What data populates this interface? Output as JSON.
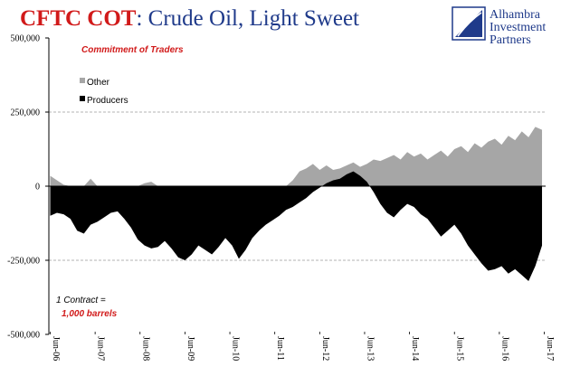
{
  "title": {
    "part1": "CFTC COT",
    "part2": ": Crude Oil, Light Sweet"
  },
  "subtitle": "Commitment of Traders",
  "logo": {
    "line1": "Alhambra",
    "line2": "Investment",
    "line3": "Partners"
  },
  "note": {
    "line1": "1 Contract =",
    "line2": "1,000 barrels"
  },
  "colors": {
    "title_red": "#d11a1a",
    "title_blue": "#1f3a8a",
    "other": "#a6a6a6",
    "producers": "#000000",
    "grid": "#9a9a9a"
  },
  "chart_data": {
    "type": "area",
    "title": "CFTC COT: Crude Oil, Light Sweet",
    "subtitle": "Commitment of Traders",
    "xlabel": "",
    "ylabel": "",
    "ylim": [
      -500000,
      500000
    ],
    "y_ticks": [
      500000,
      250000,
      0,
      -250000,
      -500000
    ],
    "y_tick_labels": [
      "500,000",
      "250,000",
      "0",
      "-250,000",
      "-500,000"
    ],
    "x_tick_labels": [
      "Jun-06",
      "Jun-07",
      "Jun-08",
      "Jun-09",
      "Jun-10",
      "Jun-11",
      "Jun-12",
      "Jun-13",
      "Jun-14",
      "Jun-15",
      "Jun-16",
      "Jun-17"
    ],
    "grid": "dashed horizontal at 250,000 and -250,000",
    "legend_position": "top-left",
    "x": [
      2006.45,
      2006.6,
      2006.75,
      2006.9,
      2007.05,
      2007.2,
      2007.35,
      2007.5,
      2007.65,
      2007.8,
      2007.95,
      2008.1,
      2008.25,
      2008.4,
      2008.55,
      2008.7,
      2008.85,
      2009.0,
      2009.15,
      2009.3,
      2009.45,
      2009.6,
      2009.75,
      2009.9,
      2010.05,
      2010.2,
      2010.35,
      2010.5,
      2010.65,
      2010.8,
      2010.95,
      2011.1,
      2011.25,
      2011.4,
      2011.55,
      2011.7,
      2011.85,
      2012.0,
      2012.15,
      2012.3,
      2012.45,
      2012.6,
      2012.75,
      2012.9,
      2013.05,
      2013.2,
      2013.35,
      2013.5,
      2013.65,
      2013.8,
      2013.95,
      2014.1,
      2014.25,
      2014.4,
      2014.55,
      2014.7,
      2014.85,
      2015.0,
      2015.15,
      2015.3,
      2015.45,
      2015.6,
      2015.75,
      2015.9,
      2016.05,
      2016.2,
      2016.35,
      2016.5,
      2016.65,
      2016.8,
      2016.95,
      2017.1,
      2017.25,
      2017.4
    ],
    "series": [
      {
        "name": "Other",
        "values": [
          35000,
          20000,
          5000,
          0,
          0,
          0,
          25000,
          0,
          0,
          0,
          0,
          0,
          0,
          0,
          10000,
          15000,
          0,
          0,
          0,
          0,
          0,
          0,
          0,
          0,
          0,
          0,
          0,
          0,
          0,
          0,
          0,
          0,
          0,
          0,
          0,
          0,
          20000,
          50000,
          60000,
          75000,
          55000,
          70000,
          55000,
          60000,
          70000,
          80000,
          65000,
          75000,
          90000,
          85000,
          95000,
          105000,
          90000,
          115000,
          100000,
          110000,
          90000,
          105000,
          120000,
          100000,
          125000,
          135000,
          115000,
          145000,
          130000,
          150000,
          160000,
          140000,
          170000,
          155000,
          185000,
          165000,
          200000,
          190000
        ]
      },
      {
        "name": "Producers",
        "values": [
          -100000,
          -90000,
          -95000,
          -110000,
          -150000,
          -160000,
          -130000,
          -120000,
          -105000,
          -90000,
          -85000,
          -110000,
          -140000,
          -180000,
          -200000,
          -210000,
          -205000,
          -185000,
          -210000,
          -240000,
          -250000,
          -230000,
          -200000,
          -215000,
          -230000,
          -205000,
          -175000,
          -200000,
          -245000,
          -215000,
          -175000,
          -150000,
          -130000,
          -115000,
          -100000,
          -80000,
          -70000,
          -55000,
          -40000,
          -20000,
          -5000,
          10000,
          20000,
          25000,
          40000,
          50000,
          35000,
          15000,
          -20000,
          -60000,
          -90000,
          -105000,
          -80000,
          -60000,
          -70000,
          -95000,
          -110000,
          -140000,
          -170000,
          -150000,
          -130000,
          -160000,
          -200000,
          -230000,
          -260000,
          -285000,
          -280000,
          -270000,
          -295000,
          -280000,
          -300000,
          -320000,
          -270000,
          -200000
        ]
      }
    ]
  },
  "legend": [
    {
      "name": "Other",
      "color": "#a6a6a6"
    },
    {
      "name": "Producers",
      "color": "#000000"
    }
  ]
}
